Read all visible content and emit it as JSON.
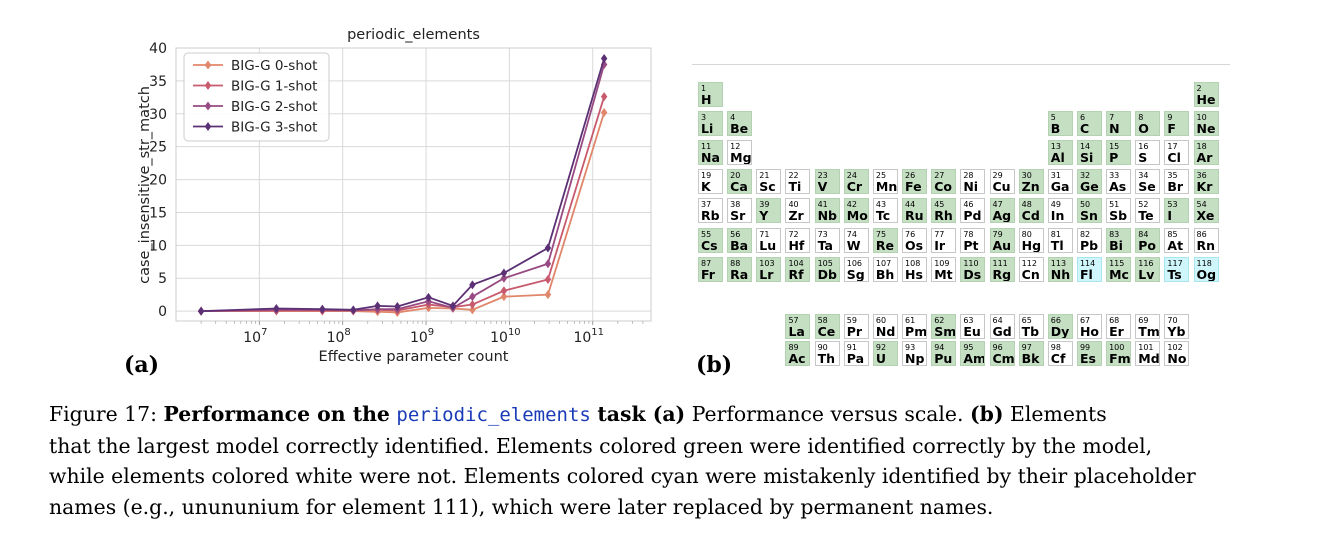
{
  "panel_labels": {
    "a": "(a)",
    "b": "(b)"
  },
  "chart_data": {
    "type": "line",
    "title": "periodic_elements",
    "xlabel": "Effective parameter count",
    "ylabel": "case_insensitive_str_match",
    "x_scale": "log",
    "xlim": [
      1000000,
      500000000000
    ],
    "ylim": [
      -1.5,
      40
    ],
    "yticks": [
      0,
      5,
      10,
      15,
      20,
      25,
      30,
      35,
      40
    ],
    "xticks": [
      {
        "value": 10000000,
        "base": "10",
        "exp": "7"
      },
      {
        "value": 100000000,
        "base": "10",
        "exp": "8"
      },
      {
        "value": 1000000000,
        "base": "10",
        "exp": "9"
      },
      {
        "value": 10000000000,
        "base": "10",
        "exp": "10"
      },
      {
        "value": 100000000000,
        "base": "10",
        "exp": "11"
      }
    ],
    "grid": true,
    "legend_position": "upper-left",
    "x": [
      2000000,
      16000000,
      57000000,
      134000000,
      262000000,
      453000000,
      1070000000,
      2100000000,
      3600000000,
      8600000000,
      29000000000,
      137000000000
    ],
    "series": [
      {
        "name": "BIG-G 0-shot",
        "color": "#e0866a",
        "values": [
          0.0,
          0.0,
          0.0,
          0.0,
          -0.1,
          -0.2,
          0.5,
          0.4,
          0.2,
          2.2,
          2.5,
          30.2
        ]
      },
      {
        "name": "BIG-G 1-shot",
        "color": "#c85a6e",
        "values": [
          0.0,
          0.1,
          0.1,
          0.1,
          0.2,
          0.1,
          1.0,
          0.6,
          1.0,
          3.1,
          4.8,
          32.6
        ]
      },
      {
        "name": "BIG-G 2-shot",
        "color": "#984a83",
        "values": [
          0.0,
          0.2,
          0.2,
          0.1,
          0.3,
          0.3,
          1.5,
          0.5,
          2.2,
          5.0,
          7.2,
          37.5
        ]
      },
      {
        "name": "BIG-G 3-shot",
        "color": "#5b3074",
        "values": [
          0.0,
          0.4,
          0.3,
          0.2,
          0.8,
          0.7,
          2.1,
          0.8,
          4.0,
          5.8,
          9.6,
          38.4
        ]
      }
    ]
  },
  "periodic_table": {
    "elements": [
      {
        "n": "1",
        "s": "H",
        "st": "g"
      },
      {
        "n": "2",
        "s": "He",
        "st": "g"
      },
      {
        "n": "3",
        "s": "Li",
        "st": "g"
      },
      {
        "n": "4",
        "s": "Be",
        "st": "g"
      },
      {
        "n": "5",
        "s": "B",
        "st": "g"
      },
      {
        "n": "6",
        "s": "C",
        "st": "g"
      },
      {
        "n": "7",
        "s": "N",
        "st": "g"
      },
      {
        "n": "8",
        "s": "O",
        "st": "g"
      },
      {
        "n": "9",
        "s": "F",
        "st": "g"
      },
      {
        "n": "10",
        "s": "Ne",
        "st": "g"
      },
      {
        "n": "11",
        "s": "Na",
        "st": "g"
      },
      {
        "n": "12",
        "s": "Mg",
        "st": "w"
      },
      {
        "n": "13",
        "s": "Al",
        "st": "g"
      },
      {
        "n": "14",
        "s": "Si",
        "st": "g"
      },
      {
        "n": "15",
        "s": "P",
        "st": "g"
      },
      {
        "n": "16",
        "s": "S",
        "st": "w"
      },
      {
        "n": "17",
        "s": "Cl",
        "st": "w"
      },
      {
        "n": "18",
        "s": "Ar",
        "st": "g"
      },
      {
        "n": "19",
        "s": "K",
        "st": "w"
      },
      {
        "n": "20",
        "s": "Ca",
        "st": "g"
      },
      {
        "n": "21",
        "s": "Sc",
        "st": "w"
      },
      {
        "n": "22",
        "s": "Ti",
        "st": "w"
      },
      {
        "n": "23",
        "s": "V",
        "st": "g"
      },
      {
        "n": "24",
        "s": "Cr",
        "st": "g"
      },
      {
        "n": "25",
        "s": "Mn",
        "st": "w"
      },
      {
        "n": "26",
        "s": "Fe",
        "st": "g"
      },
      {
        "n": "27",
        "s": "Co",
        "st": "g"
      },
      {
        "n": "28",
        "s": "Ni",
        "st": "w"
      },
      {
        "n": "29",
        "s": "Cu",
        "st": "w"
      },
      {
        "n": "30",
        "s": "Zn",
        "st": "g"
      },
      {
        "n": "31",
        "s": "Ga",
        "st": "w"
      },
      {
        "n": "32",
        "s": "Ge",
        "st": "g"
      },
      {
        "n": "33",
        "s": "As",
        "st": "w"
      },
      {
        "n": "34",
        "s": "Se",
        "st": "w"
      },
      {
        "n": "35",
        "s": "Br",
        "st": "w"
      },
      {
        "n": "36",
        "s": "Kr",
        "st": "g"
      },
      {
        "n": "37",
        "s": "Rb",
        "st": "w"
      },
      {
        "n": "38",
        "s": "Sr",
        "st": "w"
      },
      {
        "n": "39",
        "s": "Y",
        "st": "g"
      },
      {
        "n": "40",
        "s": "Zr",
        "st": "w"
      },
      {
        "n": "41",
        "s": "Nb",
        "st": "g"
      },
      {
        "n": "42",
        "s": "Mo",
        "st": "g"
      },
      {
        "n": "43",
        "s": "Tc",
        "st": "w"
      },
      {
        "n": "44",
        "s": "Ru",
        "st": "g"
      },
      {
        "n": "45",
        "s": "Rh",
        "st": "g"
      },
      {
        "n": "46",
        "s": "Pd",
        "st": "w"
      },
      {
        "n": "47",
        "s": "Ag",
        "st": "g"
      },
      {
        "n": "48",
        "s": "Cd",
        "st": "g"
      },
      {
        "n": "49",
        "s": "In",
        "st": "w"
      },
      {
        "n": "50",
        "s": "Sn",
        "st": "g"
      },
      {
        "n": "51",
        "s": "Sb",
        "st": "w"
      },
      {
        "n": "52",
        "s": "Te",
        "st": "w"
      },
      {
        "n": "53",
        "s": "I",
        "st": "g"
      },
      {
        "n": "54",
        "s": "Xe",
        "st": "g"
      },
      {
        "n": "55",
        "s": "Cs",
        "st": "g"
      },
      {
        "n": "56",
        "s": "Ba",
        "st": "g"
      },
      {
        "n": "71",
        "s": "Lu",
        "st": "w"
      },
      {
        "n": "72",
        "s": "Hf",
        "st": "w"
      },
      {
        "n": "73",
        "s": "Ta",
        "st": "w"
      },
      {
        "n": "74",
        "s": "W",
        "st": "w"
      },
      {
        "n": "75",
        "s": "Re",
        "st": "g"
      },
      {
        "n": "76",
        "s": "Os",
        "st": "w"
      },
      {
        "n": "77",
        "s": "Ir",
        "st": "w"
      },
      {
        "n": "78",
        "s": "Pt",
        "st": "w"
      },
      {
        "n": "79",
        "s": "Au",
        "st": "g"
      },
      {
        "n": "80",
        "s": "Hg",
        "st": "w"
      },
      {
        "n": "81",
        "s": "Tl",
        "st": "w"
      },
      {
        "n": "82",
        "s": "Pb",
        "st": "w"
      },
      {
        "n": "83",
        "s": "Bi",
        "st": "g"
      },
      {
        "n": "84",
        "s": "Po",
        "st": "g"
      },
      {
        "n": "85",
        "s": "At",
        "st": "w"
      },
      {
        "n": "86",
        "s": "Rn",
        "st": "w"
      },
      {
        "n": "87",
        "s": "Fr",
        "st": "g"
      },
      {
        "n": "88",
        "s": "Ra",
        "st": "g"
      },
      {
        "n": "103",
        "s": "Lr",
        "st": "g"
      },
      {
        "n": "104",
        "s": "Rf",
        "st": "g"
      },
      {
        "n": "105",
        "s": "Db",
        "st": "g"
      },
      {
        "n": "106",
        "s": "Sg",
        "st": "w"
      },
      {
        "n": "107",
        "s": "Bh",
        "st": "w"
      },
      {
        "n": "108",
        "s": "Hs",
        "st": "w"
      },
      {
        "n": "109",
        "s": "Mt",
        "st": "w"
      },
      {
        "n": "110",
        "s": "Ds",
        "st": "g"
      },
      {
        "n": "111",
        "s": "Rg",
        "st": "g"
      },
      {
        "n": "112",
        "s": "Cn",
        "st": "w"
      },
      {
        "n": "113",
        "s": "Nh",
        "st": "g"
      },
      {
        "n": "114",
        "s": "Fl",
        "st": "c"
      },
      {
        "n": "115",
        "s": "Mc",
        "st": "g"
      },
      {
        "n": "116",
        "s": "Lv",
        "st": "g"
      },
      {
        "n": "117",
        "s": "Ts",
        "st": "c"
      },
      {
        "n": "118",
        "s": "Og",
        "st": "c"
      },
      {
        "n": "57",
        "s": "La",
        "st": "g"
      },
      {
        "n": "58",
        "s": "Ce",
        "st": "g"
      },
      {
        "n": "59",
        "s": "Pr",
        "st": "w"
      },
      {
        "n": "60",
        "s": "Nd",
        "st": "w"
      },
      {
        "n": "61",
        "s": "Pm",
        "st": "w"
      },
      {
        "n": "62",
        "s": "Sm",
        "st": "g"
      },
      {
        "n": "63",
        "s": "Eu",
        "st": "w"
      },
      {
        "n": "64",
        "s": "Gd",
        "st": "w"
      },
      {
        "n": "65",
        "s": "Tb",
        "st": "w"
      },
      {
        "n": "66",
        "s": "Dy",
        "st": "g"
      },
      {
        "n": "67",
        "s": "Ho",
        "st": "w"
      },
      {
        "n": "68",
        "s": "Er",
        "st": "w"
      },
      {
        "n": "69",
        "s": "Tm",
        "st": "w"
      },
      {
        "n": "70",
        "s": "Yb",
        "st": "w"
      },
      {
        "n": "89",
        "s": "Ac",
        "st": "g"
      },
      {
        "n": "90",
        "s": "Th",
        "st": "w"
      },
      {
        "n": "91",
        "s": "Pa",
        "st": "w"
      },
      {
        "n": "92",
        "s": "U",
        "st": "g"
      },
      {
        "n": "93",
        "s": "Np",
        "st": "w"
      },
      {
        "n": "94",
        "s": "Pu",
        "st": "g"
      },
      {
        "n": "95",
        "s": "Am",
        "st": "g"
      },
      {
        "n": "96",
        "s": "Cm",
        "st": "g"
      },
      {
        "n": "97",
        "s": "Bk",
        "st": "g"
      },
      {
        "n": "98",
        "s": "Cf",
        "st": "w"
      },
      {
        "n": "99",
        "s": "Es",
        "st": "g"
      },
      {
        "n": "100",
        "s": "Fm",
        "st": "g"
      },
      {
        "n": "101",
        "s": "Md",
        "st": "w"
      },
      {
        "n": "102",
        "s": "No",
        "st": "w"
      }
    ],
    "colors": {
      "green": "#c5dfc3",
      "white": "#ffffff",
      "cyan": "#cff6fb"
    }
  },
  "caption": {
    "figure": "Figure 17:",
    "bold_a": "Performance on the",
    "task": "periodic_elements",
    "bold_b": "task (a)",
    "t1": "Performance versus scale.",
    "b_label": "(b)",
    "t2": "Elements",
    "line2": "that the largest model correctly identified. Elements colored green were identified correctly by the model,",
    "line3": "while elements colored white were not. Elements colored cyan were mistakenly identified by their placeholder",
    "line4": "names (e.g., unununium for element 111), which were later replaced by permanent names."
  }
}
